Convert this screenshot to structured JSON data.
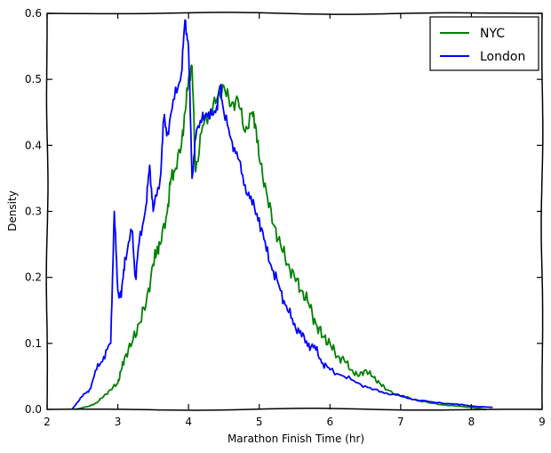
{
  "chart_data": {
    "type": "line",
    "title": "",
    "xlabel": "Marathon Finish Time (hr)",
    "ylabel": "Density",
    "xlim": [
      2,
      9
    ],
    "ylim": [
      0,
      0.6
    ],
    "x_ticks": [
      "2",
      "3",
      "4",
      "5",
      "6",
      "7",
      "8",
      "9"
    ],
    "y_ticks": [
      "0.0",
      "0.1",
      "0.2",
      "0.3",
      "0.4",
      "0.5",
      "0.6"
    ],
    "grid": false,
    "legend_position": "top-right",
    "series": [
      {
        "name": "NYC",
        "color": "#008000",
        "x": [
          2.4,
          2.6,
          2.7,
          2.8,
          2.9,
          3.0,
          3.05,
          3.1,
          3.2,
          3.3,
          3.4,
          3.5,
          3.55,
          3.6,
          3.7,
          3.75,
          3.8,
          3.9,
          3.95,
          4.0,
          4.05,
          4.1,
          4.2,
          4.3,
          4.4,
          4.5,
          4.6,
          4.7,
          4.8,
          4.9,
          4.95,
          5.0,
          5.1,
          5.2,
          5.3,
          5.4,
          5.5,
          5.6,
          5.7,
          5.8,
          5.9,
          6.0,
          6.1,
          6.2,
          6.3,
          6.4,
          6.5,
          6.6,
          6.7,
          6.8,
          7.0,
          7.2,
          7.4,
          7.6,
          7.8,
          8.0,
          8.2
        ],
        "y": [
          0.0,
          0.005,
          0.01,
          0.02,
          0.03,
          0.04,
          0.06,
          0.08,
          0.1,
          0.13,
          0.16,
          0.22,
          0.24,
          0.25,
          0.3,
          0.35,
          0.36,
          0.4,
          0.45,
          0.5,
          0.52,
          0.36,
          0.43,
          0.45,
          0.47,
          0.49,
          0.46,
          0.47,
          0.42,
          0.45,
          0.43,
          0.38,
          0.33,
          0.28,
          0.25,
          0.22,
          0.2,
          0.18,
          0.16,
          0.13,
          0.11,
          0.1,
          0.08,
          0.075,
          0.06,
          0.05,
          0.06,
          0.05,
          0.04,
          0.03,
          0.02,
          0.015,
          0.01,
          0.007,
          0.005,
          0.003,
          0.0
        ]
      },
      {
        "name": "London",
        "color": "#0000ff",
        "x": [
          2.35,
          2.5,
          2.6,
          2.7,
          2.8,
          2.9,
          2.95,
          3.0,
          3.05,
          3.1,
          3.2,
          3.25,
          3.3,
          3.4,
          3.45,
          3.5,
          3.6,
          3.65,
          3.7,
          3.8,
          3.9,
          3.95,
          4.0,
          4.05,
          4.1,
          4.2,
          4.3,
          4.4,
          4.45,
          4.5,
          4.6,
          4.7,
          4.8,
          4.9,
          5.0,
          5.1,
          5.2,
          5.3,
          5.4,
          5.5,
          5.6,
          5.7,
          5.8,
          5.9,
          6.0,
          6.2,
          6.4,
          6.6,
          6.8,
          7.0,
          7.2,
          7.5,
          7.8,
          8.0,
          8.3
        ],
        "y": [
          0.0,
          0.02,
          0.03,
          0.06,
          0.08,
          0.1,
          0.3,
          0.18,
          0.17,
          0.23,
          0.27,
          0.2,
          0.25,
          0.31,
          0.37,
          0.3,
          0.35,
          0.44,
          0.42,
          0.47,
          0.51,
          0.59,
          0.55,
          0.35,
          0.41,
          0.45,
          0.44,
          0.46,
          0.49,
          0.45,
          0.41,
          0.38,
          0.34,
          0.31,
          0.29,
          0.24,
          0.21,
          0.18,
          0.15,
          0.13,
          0.11,
          0.1,
          0.09,
          0.07,
          0.06,
          0.05,
          0.04,
          0.03,
          0.025,
          0.02,
          0.015,
          0.01,
          0.008,
          0.005,
          0.003
        ]
      }
    ]
  }
}
